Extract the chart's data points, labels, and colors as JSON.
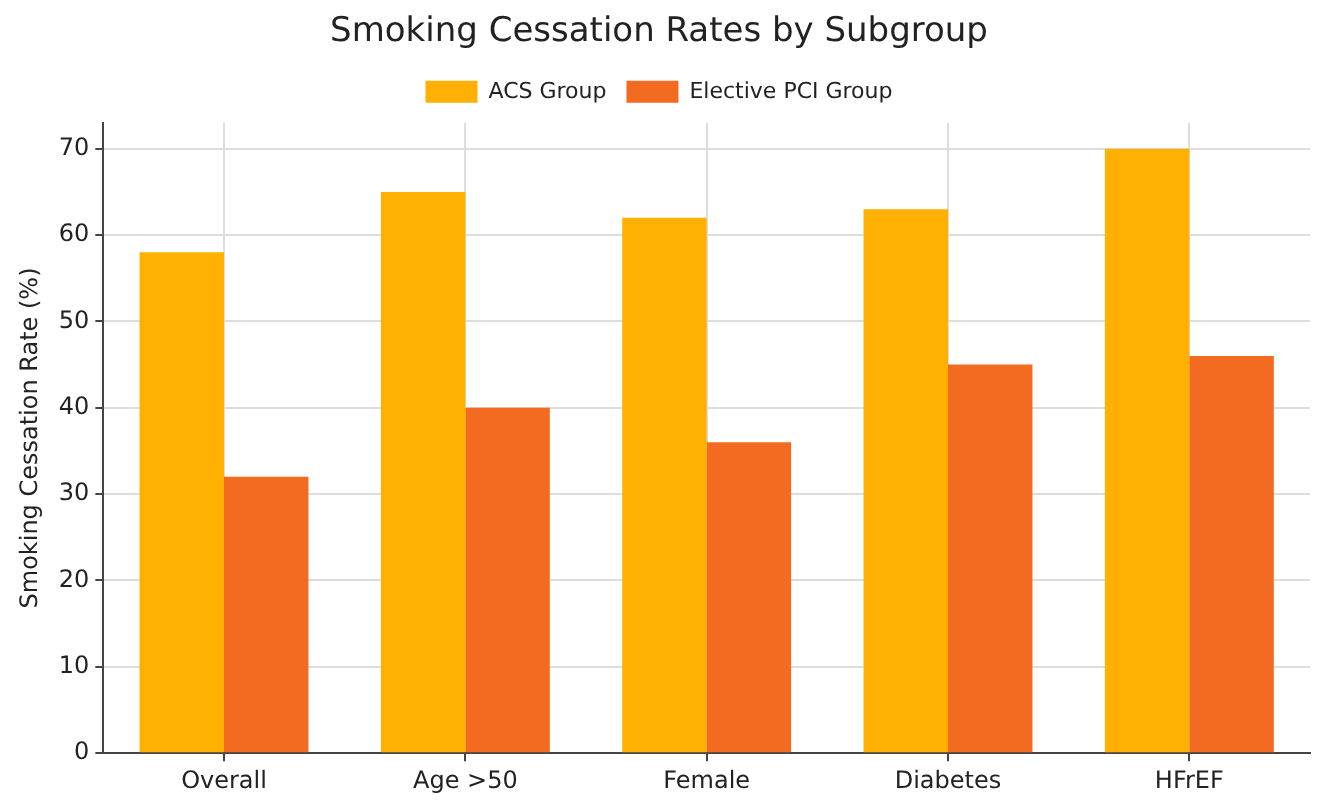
{
  "chart_data": {
    "type": "bar",
    "title": "Smoking Cessation Rates by Subgroup",
    "ylabel": "Smoking Cessation Rate (%)",
    "categories": [
      "Overall",
      "Age >50",
      "Female",
      "Diabetes",
      "HFrEF"
    ],
    "series": [
      {
        "name": "ACS Group",
        "color": "#ffb000",
        "values": [
          58,
          65,
          62,
          63,
          70
        ]
      },
      {
        "name": "Elective PCI Group",
        "color": "#f26b21",
        "values": [
          32,
          40,
          36,
          45,
          46
        ]
      }
    ],
    "ylim": [
      0,
      73
    ],
    "yticks": [
      0,
      10,
      20,
      30,
      40,
      50,
      60,
      70
    ],
    "grid": true,
    "legend": "top"
  }
}
